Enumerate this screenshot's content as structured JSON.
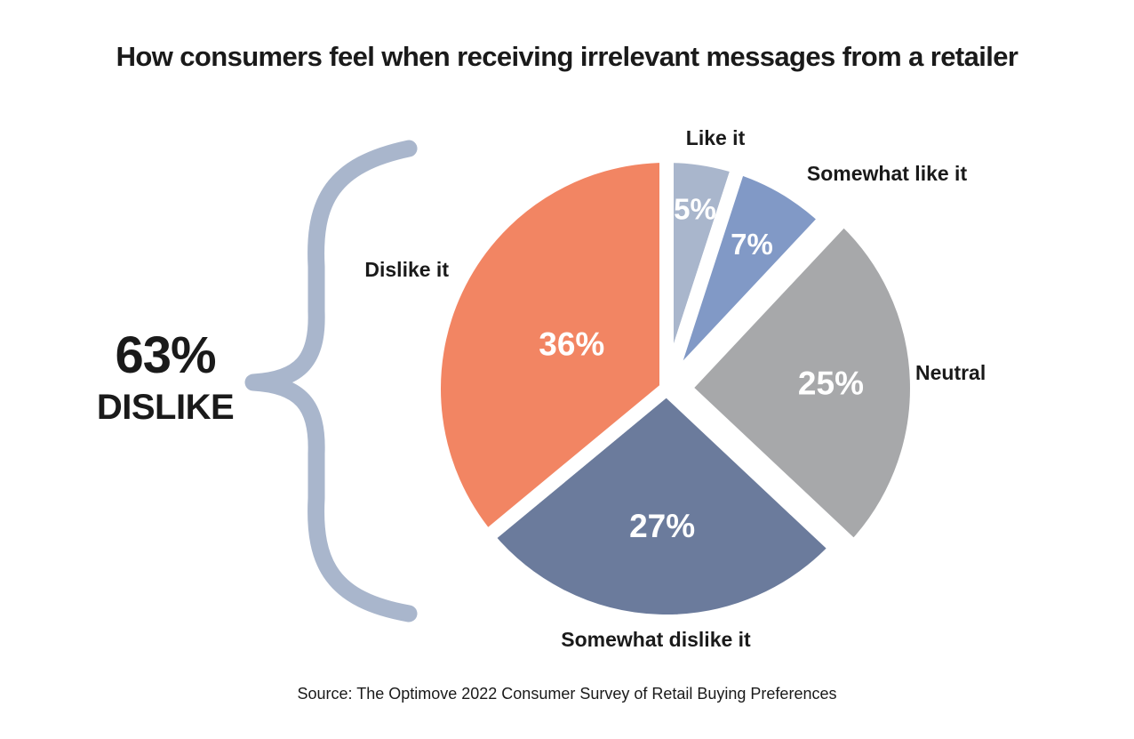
{
  "chart_data": {
    "type": "pie",
    "title": "How consumers feel when receiving irrelevant messages from a retailer",
    "categories": [
      "Like it",
      "Somewhat like it",
      "Neutral",
      "Somewhat dislike it",
      "Dislike it"
    ],
    "values": [
      5,
      7,
      25,
      27,
      36
    ],
    "value_labels": [
      "5%",
      "7%",
      "25%",
      "27%",
      "36%"
    ],
    "unit": "%",
    "exploded": [
      "Neutral"
    ],
    "colors": {
      "Like it": "#a9b6cc",
      "Somewhat like it": "#8199c6",
      "Neutral": "#a7a8aa",
      "Somewhat dislike it": "#6b7b9c",
      "Dislike it": "#f28563"
    },
    "summary": {
      "value": "63%",
      "label": "DISLIKE",
      "brace_color": "#a9b6cc"
    },
    "source": "Source: The Optimove 2022 Consumer Survey of Retail Buying Preferences"
  }
}
